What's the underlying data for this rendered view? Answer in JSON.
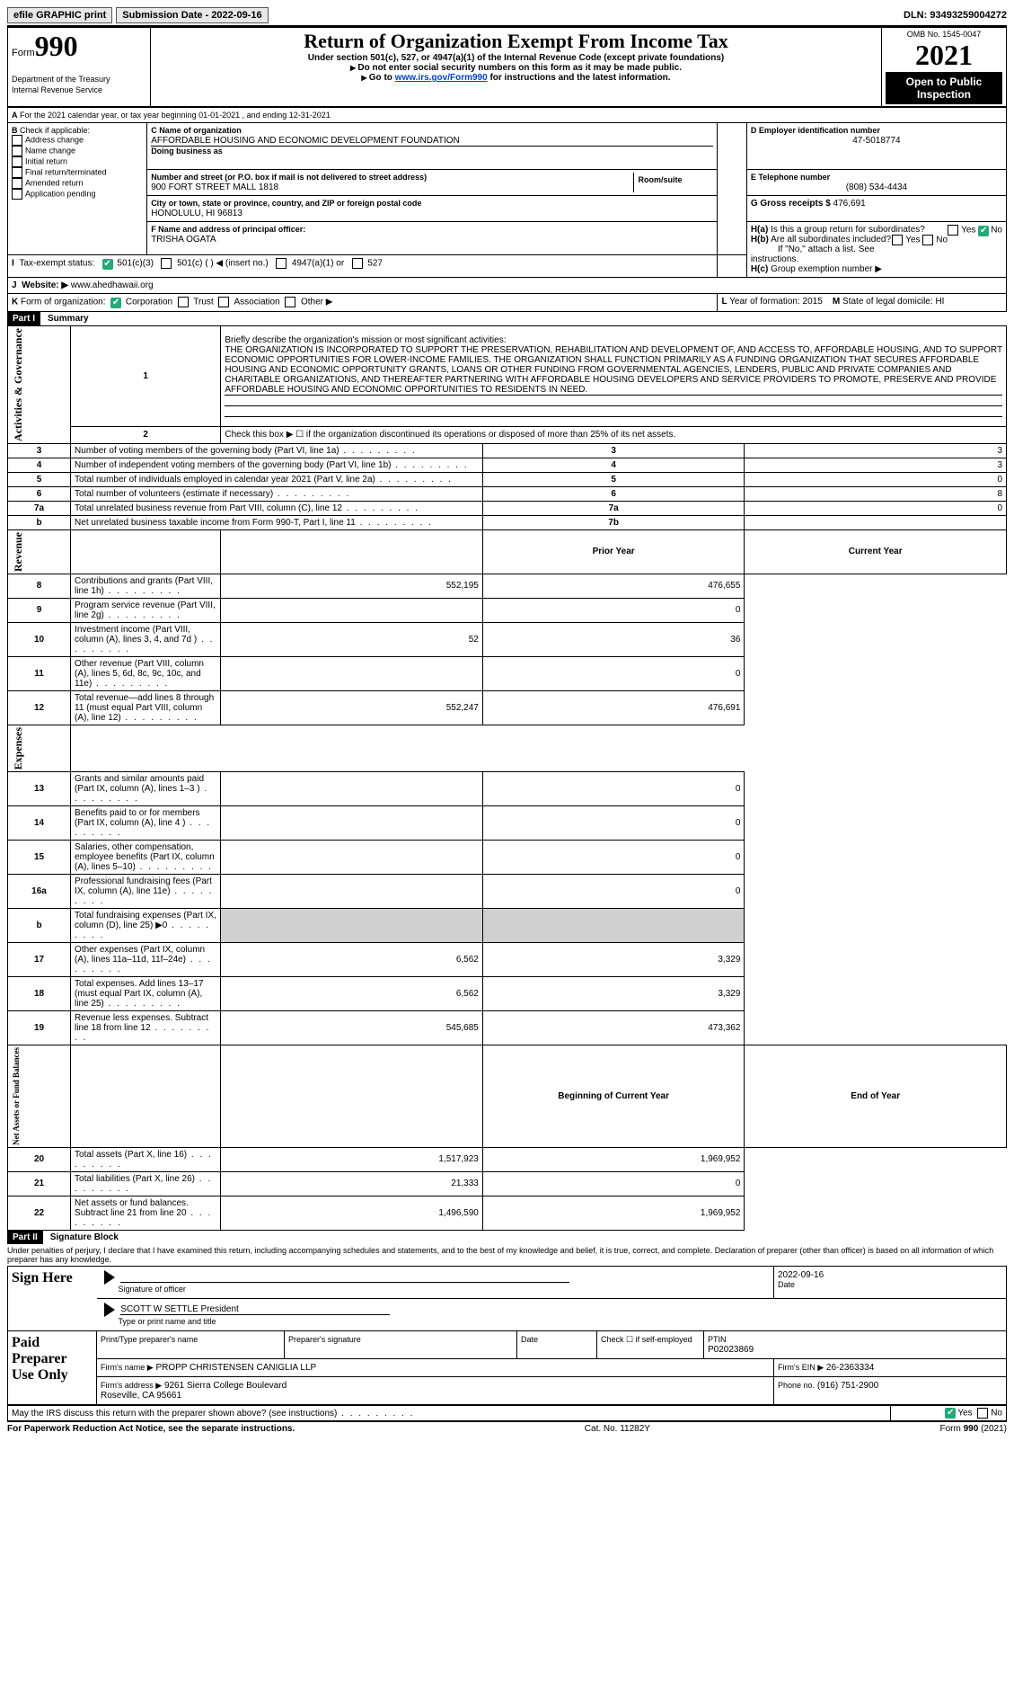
{
  "topbar": {
    "efile": "efile GRAPHIC print",
    "submission_label": "Submission Date - 2022-09-16",
    "dln": "DLN: 93493259004272"
  },
  "header": {
    "form_prefix": "Form",
    "form_num": "990",
    "title": "Return of Organization Exempt From Income Tax",
    "subtitle1": "Under section 501(c), 527, or 4947(a)(1) of the Internal Revenue Code (except private foundations)",
    "subtitle2": "Do not enter social security numbers on this form as it may be made public.",
    "subtitle3_pre": "Go to ",
    "subtitle3_link": "www.irs.gov/Form990",
    "subtitle3_post": " for instructions and the latest information.",
    "dept": "Department of the Treasury\nInternal Revenue Service",
    "omb": "OMB No. 1545-0047",
    "year": "2021",
    "open": "Open to Public Inspection"
  },
  "A": {
    "text": "For the 2021 calendar year, or tax year beginning 01-01-2021   , and ending 12-31-2021"
  },
  "B": {
    "lead": "Check if applicable:",
    "items": [
      "Address change",
      "Name change",
      "Initial return",
      "Final return/terminated",
      "Amended return",
      "Application pending"
    ]
  },
  "C": {
    "label": "C Name of organization",
    "name": "AFFORDABLE HOUSING AND ECONOMIC DEVELOPMENT FOUNDATION",
    "dba_label": "Doing business as",
    "addr_label": "Number and street (or P.O. box if mail is not delivered to street address)",
    "room_label": "Room/suite",
    "addr": "900 FORT STREET MALL 1818",
    "city_label": "City or town, state or province, country, and ZIP or foreign postal code",
    "city": "HONOLULU, HI  96813"
  },
  "D": {
    "label": "D Employer identification number",
    "val": "47-5018774"
  },
  "E": {
    "label": "E Telephone number",
    "val": "(808) 534-4434"
  },
  "G": {
    "label": "G Gross receipts $",
    "val": "476,691"
  },
  "F": {
    "label": "F  Name and address of principal officer:",
    "val": "TRISHA OGATA"
  },
  "H": {
    "a": "Is this a group return for subordinates?",
    "b": "Are all subordinates included?",
    "bnote": "If \"No,\" attach a list. See instructions.",
    "c": "Group exemption number ▶"
  },
  "I": {
    "label": "Tax-exempt status:",
    "opts": [
      "501(c)(3)",
      "501(c) (  ) ◀ (insert no.)",
      "4947(a)(1) or",
      "527"
    ]
  },
  "J": {
    "label": "Website: ▶",
    "val": "www.ahedhawaii.org"
  },
  "K": {
    "label": "Form of organization:",
    "opts": [
      "Corporation",
      "Trust",
      "Association",
      "Other ▶"
    ]
  },
  "L": {
    "label": "Year of formation:",
    "val": "2015"
  },
  "M": {
    "label": "State of legal domicile:",
    "val": "HI"
  },
  "part1": {
    "bar": "Part I",
    "title": "Summary",
    "q1": "Briefly describe the organization's mission or most significant activities:",
    "mission": "THE ORGANIZATION IS INCORPORATED TO SUPPORT THE PRESERVATION, REHABILITATION AND DEVELOPMENT OF, AND ACCESS TO, AFFORDABLE HOUSING, AND TO SUPPORT ECONOMIC OPPORTUNITIES FOR LOWER-INCOME FAMILIES. THE ORGANIZATION SHALL FUNCTION PRIMARILY AS A FUNDING ORGANIZATION THAT SECURES AFFORDABLE HOUSING AND ECONOMIC OPPORTUNITY GRANTS, LOANS OR OTHER FUNDING FROM GOVERNMENTAL AGENCIES, LENDERS, PUBLIC AND PRIVATE COMPANIES AND CHARITABLE ORGANIZATIONS, AND THEREAFTER PARTNERING WITH AFFORDABLE HOUSING DEVELOPERS AND SERVICE PROVIDERS TO PROMOTE, PRESERVE AND PROVIDE AFFORDABLE HOUSING AND ECONOMIC OPPORTUNITIES TO RESIDENTS IN NEED.",
    "q2": "Check this box ▶ ☐ if the organization discontinued its operations or disposed of more than 25% of its net assets.",
    "rows_ag": [
      {
        "n": "3",
        "t": "Number of voting members of the governing body (Part VI, line 1a)",
        "rn": "3",
        "v": "3"
      },
      {
        "n": "4",
        "t": "Number of independent voting members of the governing body (Part VI, line 1b)",
        "rn": "4",
        "v": "3"
      },
      {
        "n": "5",
        "t": "Total number of individuals employed in calendar year 2021 (Part V, line 2a)",
        "rn": "5",
        "v": "0"
      },
      {
        "n": "6",
        "t": "Total number of volunteers (estimate if necessary)",
        "rn": "6",
        "v": "8"
      },
      {
        "n": "7a",
        "t": "Total unrelated business revenue from Part VIII, column (C), line 12",
        "rn": "7a",
        "v": "0"
      },
      {
        "n": "b",
        "t": "Net unrelated business taxable income from Form 990-T, Part I, line 11",
        "rn": "7b",
        "v": ""
      }
    ],
    "col_prior": "Prior Year",
    "col_curr": "Current Year",
    "rows_rev": [
      {
        "n": "8",
        "t": "Contributions and grants (Part VIII, line 1h)",
        "p": "552,195",
        "c": "476,655"
      },
      {
        "n": "9",
        "t": "Program service revenue (Part VIII, line 2g)",
        "p": "",
        "c": "0"
      },
      {
        "n": "10",
        "t": "Investment income (Part VIII, column (A), lines 3, 4, and 7d )",
        "p": "52",
        "c": "36"
      },
      {
        "n": "11",
        "t": "Other revenue (Part VIII, column (A), lines 5, 6d, 8c, 9c, 10c, and 11e)",
        "p": "",
        "c": "0"
      },
      {
        "n": "12",
        "t": "Total revenue—add lines 8 through 11 (must equal Part VIII, column (A), line 12)",
        "p": "552,247",
        "c": "476,691"
      }
    ],
    "rows_exp": [
      {
        "n": "13",
        "t": "Grants and similar amounts paid (Part IX, column (A), lines 1–3 )",
        "p": "",
        "c": "0"
      },
      {
        "n": "14",
        "t": "Benefits paid to or for members (Part IX, column (A), line 4 )",
        "p": "",
        "c": "0"
      },
      {
        "n": "15",
        "t": "Salaries, other compensation, employee benefits (Part IX, column (A), lines 5–10)",
        "p": "",
        "c": "0"
      },
      {
        "n": "16a",
        "t": "Professional fundraising fees (Part IX, column (A), line 11e)",
        "p": "",
        "c": "0"
      },
      {
        "n": "b",
        "t": "Total fundraising expenses (Part IX, column (D), line 25) ▶0",
        "p": "shade",
        "c": "shade"
      },
      {
        "n": "17",
        "t": "Other expenses (Part IX, column (A), lines 11a–11d, 11f–24e)",
        "p": "6,562",
        "c": "3,329"
      },
      {
        "n": "18",
        "t": "Total expenses. Add lines 13–17 (must equal Part IX, column (A), line 25)",
        "p": "6,562",
        "c": "3,329"
      },
      {
        "n": "19",
        "t": "Revenue less expenses. Subtract line 18 from line 12",
        "p": "545,685",
        "c": "473,362"
      }
    ],
    "col_begin": "Beginning of Current Year",
    "col_end": "End of Year",
    "rows_net": [
      {
        "n": "20",
        "t": "Total assets (Part X, line 16)",
        "p": "1,517,923",
        "c": "1,969,952"
      },
      {
        "n": "21",
        "t": "Total liabilities (Part X, line 26)",
        "p": "21,333",
        "c": "0"
      },
      {
        "n": "22",
        "t": "Net assets or fund balances. Subtract line 21 from line 20",
        "p": "1,496,590",
        "c": "1,969,952"
      }
    ],
    "side_ag": "Activities & Governance",
    "side_rev": "Revenue",
    "side_exp": "Expenses",
    "side_net": "Net Assets or Fund Balances"
  },
  "part2": {
    "bar": "Part II",
    "title": "Signature Block",
    "decl": "Under penalties of perjury, I declare that I have examined this return, including accompanying schedules and statements, and to the best of my knowledge and belief, it is true, correct, and complete. Declaration of preparer (other than officer) is based on all information of which preparer has any knowledge.",
    "sign_here": "Sign Here",
    "sig_officer": "Signature of officer",
    "date": "Date",
    "date_val": "2022-09-16",
    "officer": "SCOTT W SETTLE  President",
    "type_name": "Type or print name and title",
    "paid": "Paid Preparer Use Only",
    "pname": "Print/Type preparer's name",
    "psig": "Preparer's signature",
    "pdate": "Date",
    "check_self": "Check ☐ if self-employed",
    "ptin_l": "PTIN",
    "ptin": "P02023869",
    "firm_name_l": "Firm's name   ▶",
    "firm_name": "PROPP CHRISTENSEN CANIGLIA LLP",
    "firm_ein_l": "Firm's EIN ▶",
    "firm_ein": "26-2363334",
    "firm_addr_l": "Firm's address ▶",
    "firm_addr": "9261 Sierra College Boulevard\nRoseville, CA  95661",
    "phone_l": "Phone no.",
    "phone": "(916) 751-2900",
    "discuss": "May the IRS discuss this return with the preparer shown above? (see instructions)"
  },
  "footer": {
    "left": "For Paperwork Reduction Act Notice, see the separate instructions.",
    "mid": "Cat. No. 11282Y",
    "right": "Form 990 (2021)"
  },
  "yes": "Yes",
  "no": "No"
}
